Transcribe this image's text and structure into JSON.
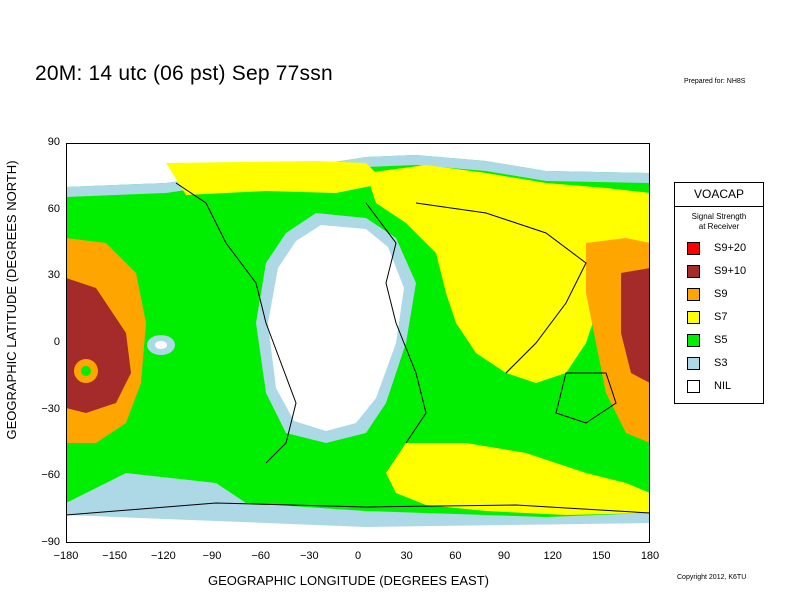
{
  "title": "20M:  14 utc (06 pst) Sep 77ssn",
  "prepared": "Prepared for: NH8S",
  "copyright": "Copyright 2012, K6TU",
  "xlabel": "GEOGRAPHIC LONGITUDE (DEGREES EAST)",
  "ylabel": "GEOGRAPHIC LATITUDE (DEGREES NORTH)",
  "axes": {
    "x_ticks": [
      "−180",
      "−150",
      "−120",
      "−90",
      "−60",
      "−30",
      "0",
      "30",
      "60",
      "90",
      "120",
      "150",
      "180"
    ],
    "y_ticks": [
      "90",
      "60",
      "30",
      "0",
      "−30",
      "−60",
      "−90"
    ],
    "x_range": [
      -180,
      180
    ],
    "y_range": [
      -90,
      90
    ]
  },
  "legend": {
    "title": "VOACAP",
    "subtitle_line1": "Signal Strength",
    "subtitle_line2": "at Receiver",
    "items": [
      {
        "label": "S9+20",
        "color": "#ff0000"
      },
      {
        "label": "S9+10",
        "color": "#a52a2a"
      },
      {
        "label": "S9",
        "color": "#ffa500"
      },
      {
        "label": "S7",
        "color": "#ffff00"
      },
      {
        "label": "S5",
        "color": "#00ee00"
      },
      {
        "label": "S3",
        "color": "#add8e6"
      },
      {
        "label": "NIL",
        "color": "#ffffff"
      }
    ]
  }
}
